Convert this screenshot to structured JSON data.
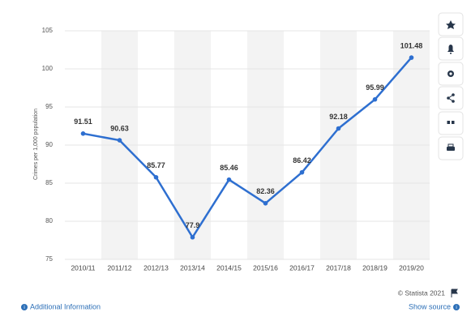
{
  "chart_data": {
    "type": "line",
    "ylabel": "Crimes per 1,000 population",
    "categories": [
      "2010/11",
      "2011/12",
      "2012/13",
      "2013/14",
      "2014/15",
      "2015/16",
      "2016/17",
      "2017/18",
      "2018/19",
      "2019/20"
    ],
    "values": [
      91.51,
      90.63,
      85.77,
      77.9,
      85.46,
      82.36,
      86.42,
      92.18,
      95.99,
      101.48
    ],
    "color": "#2e6fd0",
    "ylim": [
      75,
      105
    ],
    "yticks": [
      75,
      80,
      85,
      90,
      95,
      100,
      105
    ],
    "grid": true
  },
  "footer": {
    "copyright": "© Statista 2021",
    "additional_info": "Additional Information",
    "show_source": "Show source"
  }
}
